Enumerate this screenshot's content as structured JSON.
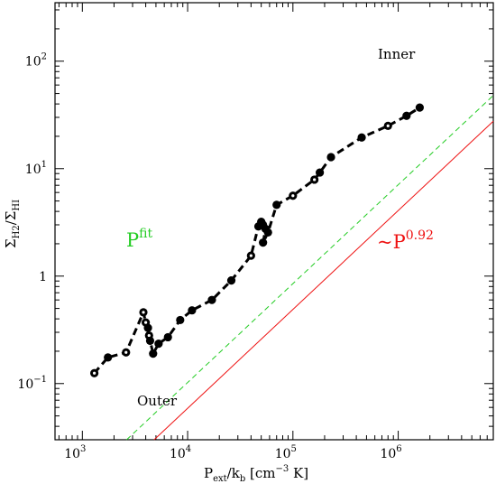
{
  "chart_data": {
    "type": "scatter",
    "xscale": "log",
    "yscale": "log",
    "xlim": [
      550,
      8000000
    ],
    "ylim": [
      0.03,
      350
    ],
    "xlabel": {
      "base": "P",
      "sub1": "ext",
      "mid": "/k",
      "sub2": "b",
      "bracket_open": " [cm",
      "power": "−3",
      "bracket_close": " K]"
    },
    "ylabel": {
      "base1": "Σ",
      "sub1": "H2",
      "slash": "/",
      "base2": "Σ",
      "sub2": "HI"
    },
    "x_ticks": [
      {
        "value": 1000,
        "base": "10",
        "exp": "3"
      },
      {
        "value": 10000,
        "base": "10",
        "exp": "4"
      },
      {
        "value": 100000,
        "base": "10",
        "exp": "5"
      },
      {
        "value": 1000000,
        "base": "10",
        "exp": "6"
      }
    ],
    "y_ticks": [
      {
        "value": 0.1,
        "base": "10",
        "exp": "−1"
      },
      {
        "value": 1,
        "base": "1",
        "exp": ""
      },
      {
        "value": 10,
        "base": "10",
        "exp": "1"
      },
      {
        "value": 100,
        "base": "10",
        "exp": "2"
      }
    ],
    "grid": false,
    "series": [
      {
        "style": "points-dashed",
        "color": "#000000",
        "x": [
          1300,
          1750,
          2600,
          3800,
          4000,
          4200,
          4300,
          4400,
          4700,
          5300,
          6500,
          8500,
          11000,
          17000,
          26000,
          40000,
          47000,
          50000,
          52000,
          55000,
          52000,
          58000,
          70000,
          100000,
          160000,
          180000,
          230000,
          450000,
          800000,
          1200000,
          1600000
        ],
        "y": [
          0.125,
          0.175,
          0.195,
          0.46,
          0.37,
          0.33,
          0.28,
          0.25,
          0.19,
          0.235,
          0.27,
          0.39,
          0.48,
          0.6,
          0.91,
          1.55,
          2.9,
          3.2,
          3.0,
          2.75,
          2.05,
          2.55,
          4.6,
          5.6,
          7.9,
          9.2,
          12.8,
          19.5,
          25.0,
          31.0,
          37.0
        ],
        "hollow": [
          true,
          false,
          true,
          true,
          true,
          false,
          true,
          false,
          false,
          false,
          false,
          false,
          false,
          false,
          false,
          true,
          false,
          false,
          false,
          false,
          false,
          false,
          false,
          true,
          true,
          false,
          false,
          false,
          true,
          false,
          false
        ]
      }
    ],
    "lines": [
      {
        "name": "Pfit",
        "color": "#22cc22",
        "dash": true,
        "slope": 0.92,
        "intercept": -4.67
      },
      {
        "name": "P0.92",
        "color": "#ee1111",
        "dash": false,
        "slope": 0.92,
        "intercept": -4.91
      }
    ],
    "annotations": {
      "inner": "Inner",
      "outer": "Outer",
      "fit_base": "P",
      "fit_sup": "fit",
      "law_prefix": "~P",
      "law_sup": "0.92"
    },
    "colors": {
      "fit": "#22cc22",
      "law": "#ee1111"
    }
  }
}
